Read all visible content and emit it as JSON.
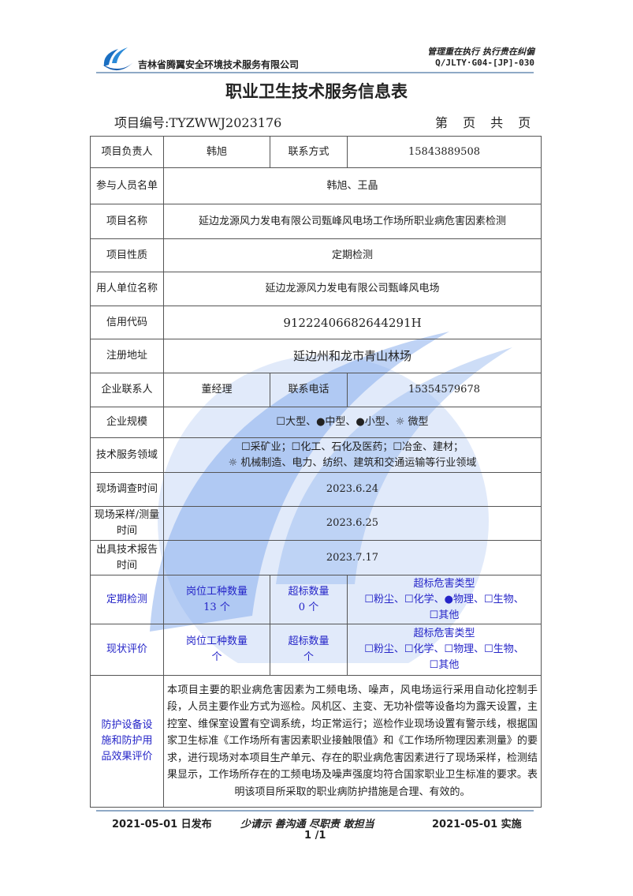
{
  "header": {
    "company": "吉林省腾翼安全环境技术服务有限公司",
    "motto": "管理重在执行 执行贵在纠偏",
    "doc_code": "Q/JLTY·G04-[JP]-030"
  },
  "title": "职业卫生技术服务信息表",
  "project_no": "项目编号:TYZWWJ2023176",
  "page_of": "第 页 共 页",
  "rows": {
    "leader_label": "项目负责人",
    "leader": "韩旭",
    "contact_label": "联系方式",
    "contact": "15843889508",
    "members_label": "参与人员名单",
    "members": "韩旭、王晶",
    "name_label": "项目名称",
    "name": "延边龙源风力发电有限公司甄峰风电场工作场所职业病危害因素检测",
    "nature_label": "项目性质",
    "nature": "定期检测",
    "employer_label": "用人单位名称",
    "employer": "延边龙源风力发电有限公司甄峰风电场",
    "credit_label": "信用代码",
    "credit": "91222406682644291H",
    "address_label": "注册地址",
    "address": "延边州和龙市青山林场",
    "ent_contact_label": "企业联系人",
    "ent_contact": "董经理",
    "ent_phone_label": "联系电话",
    "ent_phone": "15354579678",
    "scale_label": "企业规模",
    "scale": "☐大型、●中型、●小型、☼ 微型",
    "field_label": "技术服务领域",
    "field_line1": "☐采矿业；☐化工、石化及医药；☐冶金、建材；",
    "field_line2": "☼ 机械制造、电力、纺织、建筑和交通运输等行业领域",
    "survey_label": "现场调查时间",
    "survey": "2023.6.24",
    "sampling_label": "现场采样/测量时间",
    "sampling": "2023.6.25",
    "report_label": "出具技术报告时间",
    "report": "2023.7.17",
    "periodic_label": "定期检测",
    "periodic_posts": "岗位工种数量",
    "periodic_posts_val": "13 个",
    "periodic_exceed": "超标数量",
    "periodic_exceed_val": "0 个",
    "periodic_type": "超标危害类型",
    "periodic_type_line1": "☐粉尘、☐化学、●物理、☐生物、",
    "periodic_type_line2": "☐其他",
    "status_label": "现状评价",
    "status_posts": "岗位工种数量",
    "status_posts_val": "个",
    "status_exceed": "超标数量",
    "status_exceed_val": "个",
    "status_type": "超标危害类型",
    "status_type_line1": "☐粉尘、☐化学、☐物理、☐生物、",
    "status_type_line2": "☐其他",
    "protect_label": "防护设备设施和防护用品效果评价",
    "protect": "本项目主要的职业病危害因素为工频电场、噪声，风电场运行采用自动化控制手段，人员主要作业方式为巡检。风机区、主变、无功补偿等设备均为露天设置，主控室、维保室设置有空调系统，均正常运行；巡检作业现场设置有警示线，根据国家卫生标准《工作场所有害因素职业接触限值》和《工作场所物理因素测量》的要求，进行现场对本项目生产单元、存在的职业病危害因素进行了现场采样，检测结果显示，工作场所存在的工频电场及噪声强度均符合国家职业卫生标准的要求。表明该项目所采取的职业病防护措施是合理、有效的。"
  },
  "footer": {
    "issued": "2021-05-01 日发布",
    "slogan": "少请示 善沟通 尽职责 敢担当",
    "effective": "2021-05-01 实施",
    "page": "1 /1"
  }
}
